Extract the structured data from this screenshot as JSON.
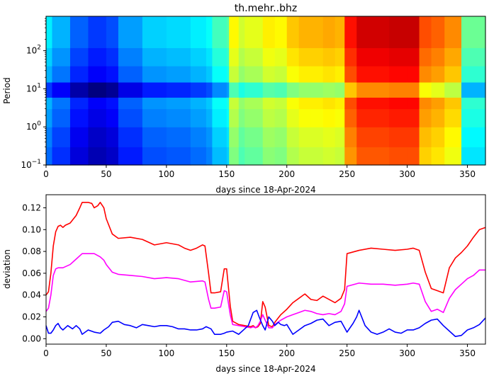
{
  "chart_data": [
    {
      "type": "heatmap",
      "title": "th.mehr..bhz",
      "xlabel": "days since 18-Apr-2024",
      "ylabel": "Period",
      "xlim": [
        0,
        365
      ],
      "x_ticks": [
        0,
        50,
        100,
        150,
        200,
        250,
        300,
        350
      ],
      "y_scale": "log",
      "ylim": [
        0.1,
        800
      ],
      "y_ticks": [
        {
          "value": 0.1,
          "base": "10",
          "exp": "−1"
        },
        {
          "value": 1,
          "base": "10",
          "exp": "0"
        },
        {
          "value": 10,
          "base": "10",
          "exp": "1"
        },
        {
          "value": 100,
          "base": "10",
          "exp": "2"
        }
      ],
      "colormap": "jet",
      "value_range": [
        0,
        1
      ],
      "day_breaks": [
        0,
        5,
        20,
        35,
        50,
        60,
        80,
        100,
        120,
        133,
        138,
        150,
        152,
        160,
        165,
        180,
        190,
        200,
        210,
        220,
        230,
        240,
        248,
        258,
        270,
        285,
        300,
        310,
        320,
        331,
        345,
        365
      ],
      "day_values": [
        0.28,
        0.22,
        0.14,
        0.1,
        0.12,
        0.2,
        0.25,
        0.26,
        0.28,
        0.3,
        0.36,
        0.38,
        0.55,
        0.5,
        0.52,
        0.56,
        0.55,
        0.6,
        0.62,
        0.62,
        0.63,
        0.62,
        0.78,
        0.84,
        0.84,
        0.85,
        0.85,
        0.72,
        0.7,
        0.66,
        0.4
      ],
      "period_breaks": [
        0.1,
        0.3,
        1,
        3,
        6,
        15,
        40,
        120,
        800
      ],
      "period_offsets": [
        -0.05,
        -0.03,
        0.0,
        0.02,
        -0.1,
        0.02,
        0.05,
        0.08
      ]
    },
    {
      "type": "line",
      "xlabel": "days since 18-Apr-2024",
      "ylabel": "deviation",
      "xlim": [
        0,
        365
      ],
      "ylim": [
        -0.005,
        0.132
      ],
      "x_ticks": [
        0,
        50,
        100,
        150,
        200,
        250,
        300,
        350
      ],
      "y_ticks": [
        0.0,
        0.02,
        0.04,
        0.06,
        0.08,
        0.1,
        0.12
      ],
      "y_tick_labels": [
        "0.00",
        "0.02",
        "0.04",
        "0.06",
        "0.08",
        "0.10",
        "0.12"
      ],
      "series": [
        {
          "color": "#ff0000",
          "x": [
            0,
            2,
            4,
            6,
            8,
            10,
            12,
            14,
            16,
            20,
            25,
            28,
            30,
            35,
            38,
            40,
            43,
            45,
            48,
            50,
            55,
            60,
            70,
            80,
            90,
            100,
            110,
            115,
            120,
            125,
            130,
            132,
            135,
            137,
            140,
            145,
            148,
            150,
            153,
            155,
            160,
            165,
            170,
            172,
            174,
            176,
            178,
            180,
            182,
            185,
            188,
            190,
            195,
            200,
            205,
            210,
            215,
            220,
            225,
            230,
            235,
            240,
            245,
            248,
            250,
            260,
            270,
            280,
            290,
            300,
            305,
            310,
            315,
            320,
            325,
            330,
            335,
            340,
            345,
            350,
            355,
            360,
            365
          ],
          "values": [
            0.04,
            0.043,
            0.06,
            0.085,
            0.098,
            0.103,
            0.104,
            0.102,
            0.104,
            0.106,
            0.113,
            0.12,
            0.125,
            0.125,
            0.124,
            0.12,
            0.122,
            0.125,
            0.12,
            0.11,
            0.096,
            0.092,
            0.093,
            0.091,
            0.086,
            0.088,
            0.086,
            0.083,
            0.081,
            0.083,
            0.086,
            0.085,
            0.06,
            0.042,
            0.042,
            0.043,
            0.064,
            0.064,
            0.03,
            0.016,
            0.013,
            0.012,
            0.011,
            0.012,
            0.01,
            0.011,
            0.014,
            0.034,
            0.029,
            0.012,
            0.011,
            0.015,
            0.022,
            0.027,
            0.033,
            0.037,
            0.041,
            0.036,
            0.035,
            0.039,
            0.036,
            0.033,
            0.037,
            0.045,
            0.078,
            0.081,
            0.083,
            0.082,
            0.081,
            0.082,
            0.083,
            0.081,
            0.061,
            0.046,
            0.044,
            0.042,
            0.065,
            0.074,
            0.079,
            0.085,
            0.093,
            0.1,
            0.102
          ]
        },
        {
          "color": "#ff00ff",
          "x": [
            0,
            2,
            4,
            6,
            8,
            10,
            14,
            20,
            25,
            30,
            35,
            40,
            45,
            48,
            50,
            55,
            60,
            70,
            80,
            90,
            100,
            110,
            120,
            130,
            132,
            135,
            137,
            140,
            145,
            148,
            150,
            153,
            155,
            160,
            165,
            170,
            172,
            174,
            176,
            178,
            180,
            182,
            185,
            188,
            190,
            195,
            200,
            205,
            210,
            215,
            220,
            225,
            230,
            235,
            240,
            245,
            248,
            250,
            260,
            270,
            280,
            290,
            300,
            305,
            310,
            315,
            320,
            325,
            330,
            335,
            340,
            345,
            350,
            355,
            360,
            365
          ],
          "values": [
            0.025,
            0.028,
            0.04,
            0.058,
            0.064,
            0.065,
            0.065,
            0.068,
            0.073,
            0.078,
            0.078,
            0.078,
            0.075,
            0.072,
            0.068,
            0.061,
            0.059,
            0.058,
            0.057,
            0.055,
            0.056,
            0.055,
            0.052,
            0.053,
            0.052,
            0.036,
            0.028,
            0.028,
            0.029,
            0.044,
            0.043,
            0.022,
            0.013,
            0.012,
            0.011,
            0.01,
            0.011,
            0.01,
            0.012,
            0.016,
            0.022,
            0.017,
            0.01,
            0.01,
            0.013,
            0.017,
            0.02,
            0.022,
            0.024,
            0.026,
            0.025,
            0.023,
            0.022,
            0.023,
            0.022,
            0.025,
            0.032,
            0.048,
            0.051,
            0.05,
            0.05,
            0.049,
            0.05,
            0.051,
            0.05,
            0.034,
            0.025,
            0.027,
            0.024,
            0.037,
            0.045,
            0.05,
            0.055,
            0.058,
            0.063,
            0.063
          ]
        },
        {
          "color": "#0000ff",
          "x": [
            0,
            2,
            4,
            6,
            8,
            10,
            12,
            14,
            18,
            22,
            25,
            28,
            30,
            35,
            40,
            45,
            48,
            52,
            55,
            60,
            65,
            70,
            75,
            80,
            85,
            90,
            95,
            100,
            105,
            110,
            115,
            120,
            125,
            130,
            133,
            137,
            140,
            145,
            148,
            150,
            155,
            160,
            165,
            168,
            170,
            172,
            175,
            177,
            180,
            182,
            185,
            188,
            190,
            193,
            195,
            198,
            200,
            205,
            210,
            215,
            220,
            225,
            230,
            235,
            240,
            245,
            248,
            250,
            255,
            258,
            260,
            265,
            270,
            275,
            280,
            285,
            290,
            295,
            300,
            305,
            310,
            315,
            320,
            325,
            330,
            335,
            340,
            345,
            350,
            355,
            360,
            365
          ],
          "values": [
            0.012,
            0.005,
            0.005,
            0.008,
            0.012,
            0.014,
            0.01,
            0.008,
            0.012,
            0.009,
            0.012,
            0.009,
            0.004,
            0.008,
            0.006,
            0.005,
            0.008,
            0.011,
            0.015,
            0.016,
            0.013,
            0.012,
            0.01,
            0.013,
            0.012,
            0.011,
            0.012,
            0.012,
            0.011,
            0.009,
            0.009,
            0.008,
            0.008,
            0.009,
            0.011,
            0.009,
            0.004,
            0.004,
            0.005,
            0.006,
            0.007,
            0.004,
            0.009,
            0.012,
            0.018,
            0.024,
            0.026,
            0.02,
            0.012,
            0.008,
            0.02,
            0.016,
            0.012,
            0.015,
            0.013,
            0.012,
            0.013,
            0.004,
            0.008,
            0.012,
            0.014,
            0.017,
            0.018,
            0.012,
            0.015,
            0.016,
            0.01,
            0.006,
            0.014,
            0.02,
            0.026,
            0.012,
            0.006,
            0.004,
            0.006,
            0.009,
            0.006,
            0.005,
            0.008,
            0.008,
            0.01,
            0.014,
            0.017,
            0.018,
            0.012,
            0.007,
            0.002,
            0.003,
            0.008,
            0.01,
            0.013,
            0.019
          ]
        }
      ]
    }
  ]
}
